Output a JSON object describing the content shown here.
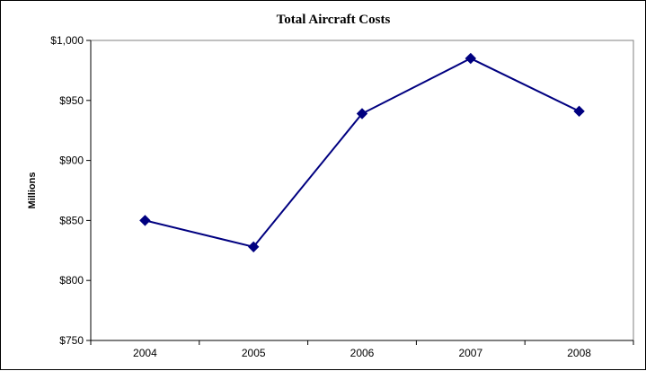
{
  "chart_data": {
    "type": "line",
    "title": "Total Aircraft Costs",
    "ylabel": "Millions",
    "xlabel": "",
    "categories": [
      "2004",
      "2005",
      "2006",
      "2007",
      "2008"
    ],
    "series": [
      {
        "values": [
          850,
          828,
          939,
          985,
          941
        ],
        "color": "#000080",
        "marker": "diamond"
      }
    ],
    "ylim": [
      750,
      1000
    ],
    "yticks": [
      750,
      800,
      850,
      900,
      950,
      1000
    ],
    "ytick_labels": [
      "$750",
      "$800",
      "$850",
      "$900",
      "$950",
      "$1,000"
    ],
    "grid": false,
    "legend": "none"
  }
}
